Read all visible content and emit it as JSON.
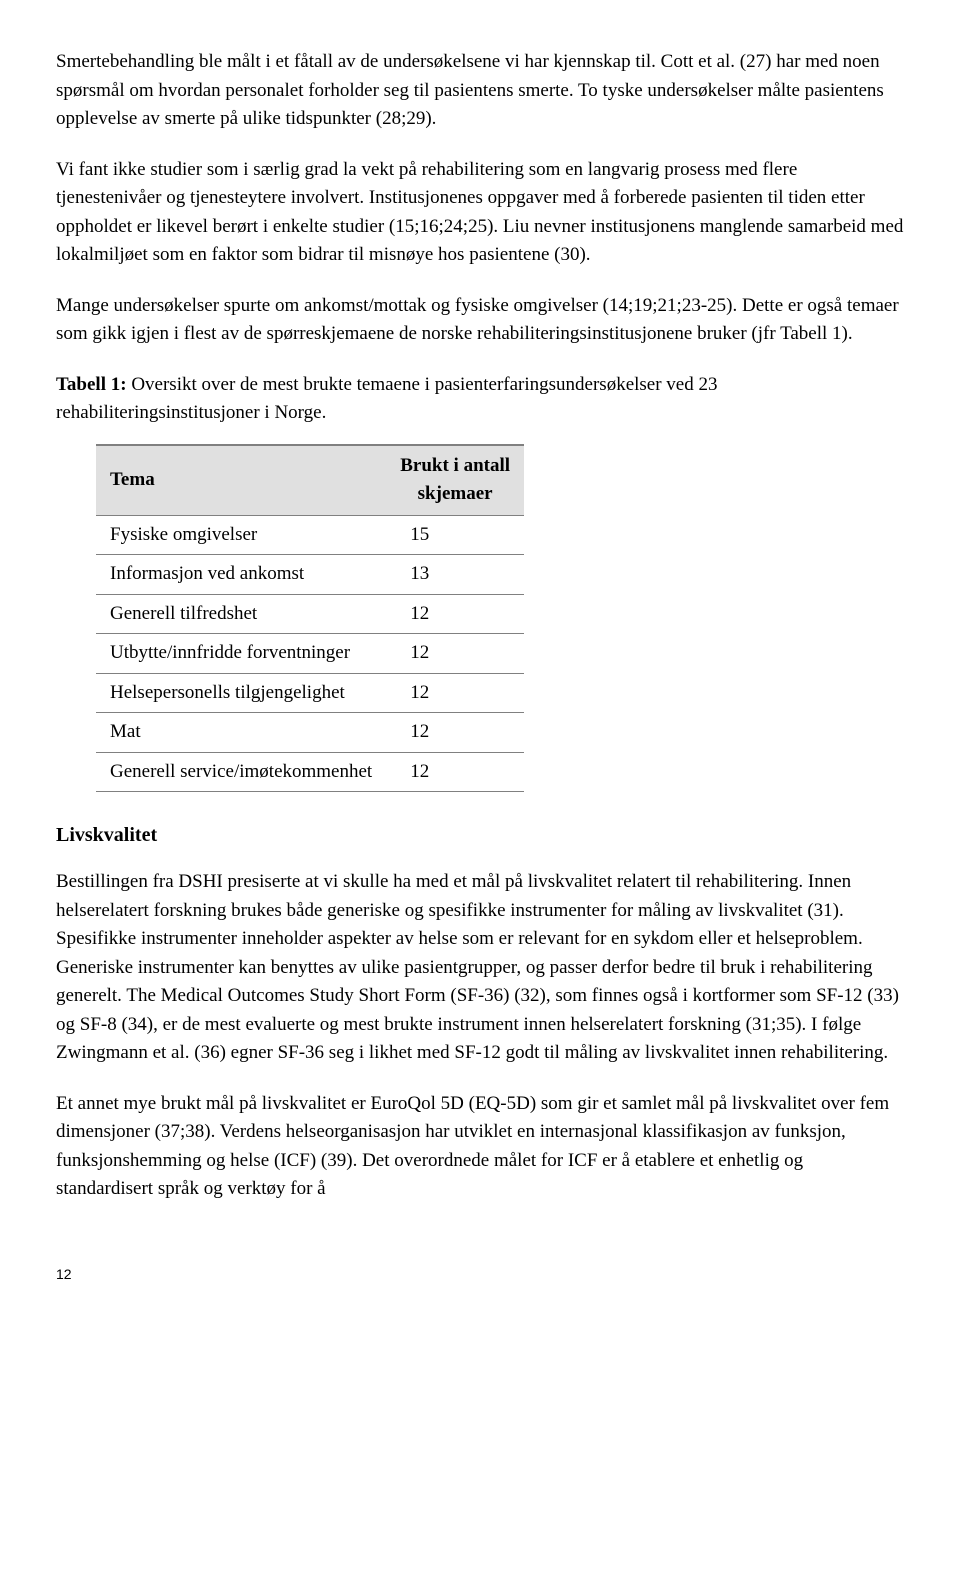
{
  "paragraphs": {
    "p1": "Smertebehandling ble målt i et fåtall av de undersøkelsene vi har kjennskap til. Cott et al. (27) har med noen spørsmål om hvordan personalet forholder seg til pasientens smerte. To tyske undersøkelser målte pasientens opplevelse av smerte på ulike tidspunkter (28;29).",
    "p2": "Vi fant ikke studier som i særlig grad la vekt på rehabilitering som en langvarig prosess med flere tjenestenivåer og tjenesteytere involvert. Institusjonenes oppgaver med å forberede pasienten til tiden etter oppholdet er likevel berørt i enkelte studier (15;16;24;25). Liu nevner institusjonens manglende samarbeid med lokalmiljøet som en faktor som bidrar til misnøye hos pasientene (30).",
    "p3": "Mange undersøkelser spurte om ankomst/mottak og fysiske omgivelser (14;19;21;23-25). Dette er også temaer som gikk igjen i flest av de spørreskjemaene de norske rehabiliteringsinstitusjonene bruker (jfr Tabell 1).",
    "p4": "Bestillingen fra DSHI presiserte at vi skulle ha med et mål på livskvalitet relatert til rehabilitering. Innen helserelatert forskning brukes både generiske og spesifikke instrumenter for måling av livskvalitet (31). Spesifikke instrumenter inneholder aspekter av helse som er relevant for en sykdom eller et helseproblem. Generiske instrumenter kan benyttes av ulike pasientgrupper, og passer derfor bedre til bruk i rehabilitering generelt. The Medical Outcomes Study Short Form (SF-36) (32), som finnes også i kortformer som SF-12 (33) og SF-8 (34), er de mest evaluerte og mest brukte instrument innen helserelatert forskning (31;35). I følge Zwingmann et al. (36) egner SF-36 seg i likhet med SF-12 godt til måling av livskvalitet innen rehabilitering.",
    "p5": "Et annet mye brukt mål på livskvalitet er EuroQol 5D (EQ-5D) som gir et samlet mål på livskvalitet over fem dimensjoner (37;38). Verdens helseorganisasjon har utviklet en internasjonal klassifikasjon av funksjon, funksjonshemming og helse (ICF) (39). Det overordnede målet for ICF er å etablere et enhetlig og standardisert språk og verktøy for å"
  },
  "table_caption_bold": "Tabell 1:",
  "table_caption_rest": " Oversikt over de mest brukte temaene i pasienterfaringsundersøkelser ved 23 rehabiliteringsinstitusjoner i Norge.",
  "table": {
    "header_col1": "Tema",
    "header_col2_line1": "Brukt i antall",
    "header_col2_line2": "skjemaer",
    "rows": [
      {
        "tema": "Fysiske omgivelser",
        "antall": "15"
      },
      {
        "tema": "Informasjon ved ankomst",
        "antall": "13"
      },
      {
        "tema": "Generell tilfredshet",
        "antall": "12"
      },
      {
        "tema": "Utbytte/innfridde forventninger",
        "antall": "12"
      },
      {
        "tema": "Helsepersonells tilgjengelighet",
        "antall": "12"
      },
      {
        "tema": "Mat",
        "antall": "12"
      },
      {
        "tema": "Generell service/imøtekommenhet",
        "antall": "12"
      }
    ]
  },
  "section_heading": "Livskvalitet",
  "page_number": "12"
}
